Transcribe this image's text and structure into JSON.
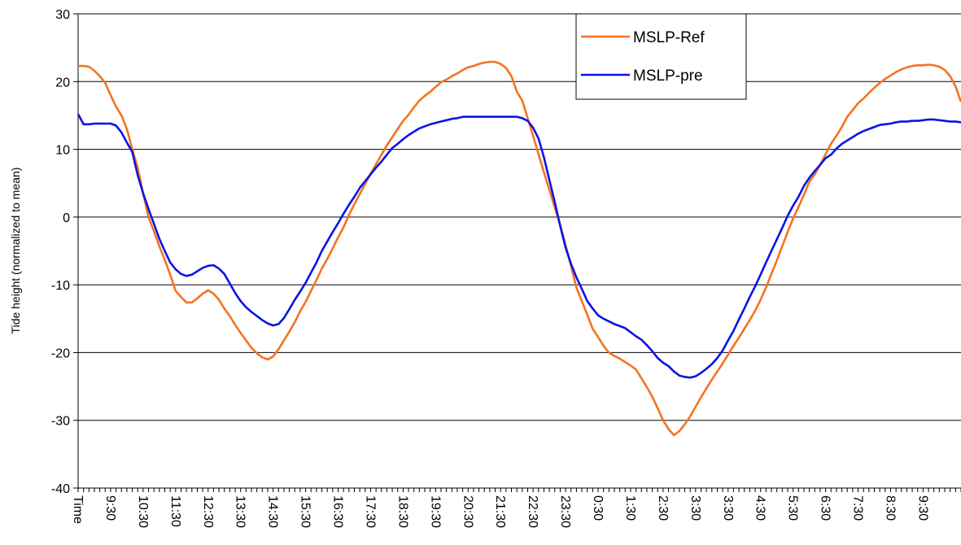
{
  "chart_data": {
    "type": "line",
    "y_label": "Tide height (normalized to mean)",
    "categories": [
      "Time",
      null,
      null,
      null,
      null,
      null,
      "9:30",
      null,
      null,
      null,
      null,
      null,
      "10:30",
      null,
      null,
      null,
      null,
      null,
      "11:30",
      null,
      null,
      null,
      null,
      null,
      "12:30",
      null,
      null,
      null,
      null,
      null,
      "13:30",
      null,
      null,
      null,
      null,
      null,
      "14:30",
      null,
      null,
      null,
      null,
      null,
      "15:30",
      null,
      null,
      null,
      null,
      null,
      "16:30",
      null,
      null,
      null,
      null,
      null,
      "17:30",
      null,
      null,
      null,
      null,
      null,
      "18:30",
      null,
      null,
      null,
      null,
      null,
      "19:30",
      null,
      null,
      null,
      null,
      null,
      "20:30",
      null,
      null,
      null,
      null,
      null,
      "21:30",
      null,
      null,
      null,
      null,
      null,
      "22:30",
      null,
      null,
      null,
      null,
      null,
      "23:30",
      null,
      null,
      null,
      null,
      null,
      "0:30",
      null,
      null,
      null,
      null,
      null,
      "1:30",
      null,
      null,
      null,
      null,
      null,
      "2:30",
      null,
      null,
      null,
      null,
      null,
      "3:30",
      null,
      null,
      null,
      null,
      null,
      "3:30",
      null,
      null,
      null,
      null,
      null,
      "4:30",
      null,
      null,
      null,
      null,
      null,
      "5:30",
      null,
      null,
      null,
      null,
      null,
      "6:30",
      null,
      null,
      null,
      null,
      null,
      "7:30",
      null,
      null,
      null,
      null,
      null,
      "8:30",
      null,
      null,
      null,
      null,
      null,
      "9:30",
      null,
      null,
      null,
      null,
      null,
      null,
      null
    ],
    "series": [
      {
        "name": "MSLP-Ref",
        "color": "#f47321",
        "values": [
          22.3,
          22.3,
          22.2,
          21.6,
          20.8,
          19.8,
          18,
          16.3,
          15,
          13,
          10,
          7.3,
          3.5,
          0,
          -2.1,
          -4.3,
          -6.3,
          -8.5,
          -10.9,
          -11.8,
          -12.6,
          -12.6,
          -12,
          -11.3,
          -10.8,
          -11.3,
          -12.2,
          -13.5,
          -14.6,
          -15.9,
          -17.1,
          -18.2,
          -19.3,
          -20.1,
          -20.7,
          -21,
          -20.6,
          -19.5,
          -18.2,
          -16.9,
          -15.5,
          -13.9,
          -12.5,
          -10.9,
          -9.3,
          -7.6,
          -6.2,
          -4.6,
          -3,
          -1.5,
          0.3,
          1.9,
          3.4,
          4.9,
          6.4,
          7.8,
          9.2,
          10.6,
          11.8,
          13,
          14.2,
          15.1,
          16.2,
          17.2,
          17.9,
          18.5,
          19.2,
          19.9,
          20.3,
          20.8,
          21.2,
          21.7,
          22.1,
          22.3,
          22.6,
          22.8,
          22.9,
          22.9,
          22.6,
          22,
          20.8,
          18.5,
          17.2,
          14.6,
          12,
          9.3,
          6.6,
          4,
          1.4,
          -1.1,
          -4.2,
          -7.2,
          -10.4,
          -12.4,
          -14.4,
          -16.5,
          -17.7,
          -19,
          -20,
          -20.5,
          -20.9,
          -21.4,
          -21.9,
          -22.5,
          -23.8,
          -25.1,
          -26.5,
          -28.2,
          -30,
          -31.3,
          -32.2,
          -31.6,
          -30.6,
          -29.4,
          -28,
          -26.6,
          -25.3,
          -24,
          -22.8,
          -21.6,
          -20.3,
          -19,
          -17.8,
          -16.5,
          -15.2,
          -13.8,
          -12.2,
          -10.4,
          -8.4,
          -6.4,
          -4.3,
          -2.2,
          -0.2,
          1.5,
          3.3,
          5.2,
          6.3,
          7.7,
          9.3,
          10.8,
          12,
          13.3,
          14.8,
          15.8,
          16.8,
          17.5,
          18.3,
          19.1,
          19.8,
          20.4,
          20.9,
          21.4,
          21.8,
          22.1,
          22.3,
          22.4,
          22.4,
          22.5,
          22.4,
          22.2,
          21.7,
          20.8,
          19.3,
          17
        ]
      },
      {
        "name": "MSLP-pre",
        "color": "#0a14e6",
        "values": [
          15.2,
          13.7,
          13.7,
          13.8,
          13.8,
          13.8,
          13.8,
          13.5,
          12.5,
          11,
          9.6,
          6.2,
          3.5,
          1.2,
          -1,
          -3.2,
          -5,
          -6.7,
          -7.7,
          -8.4,
          -8.7,
          -8.5,
          -8,
          -7.5,
          -7.2,
          -7.1,
          -7.6,
          -8.4,
          -9.8,
          -11.2,
          -12.4,
          -13.3,
          -14,
          -14.6,
          -15.2,
          -15.7,
          -16,
          -15.8,
          -14.9,
          -13.6,
          -12.2,
          -11,
          -9.7,
          -8.2,
          -6.7,
          -5,
          -3.6,
          -2.2,
          -0.9,
          0.5,
          1.8,
          3,
          4.3,
          5.3,
          6.3,
          7.3,
          8.2,
          9.2,
          10.2,
          10.8,
          11.5,
          12.1,
          12.6,
          13.1,
          13.4,
          13.7,
          13.9,
          14.1,
          14.3,
          14.5,
          14.6,
          14.8,
          14.8,
          14.8,
          14.8,
          14.8,
          14.8,
          14.8,
          14.8,
          14.8,
          14.8,
          14.8,
          14.6,
          14.2,
          13.2,
          11.6,
          8.8,
          5.5,
          2.2,
          -1.3,
          -4.5,
          -6.9,
          -8.9,
          -10.6,
          -12.4,
          -13.5,
          -14.5,
          -15,
          -15.4,
          -15.8,
          -16.1,
          -16.4,
          -17,
          -17.6,
          -18.1,
          -18.9,
          -19.8,
          -20.8,
          -21.5,
          -22,
          -22.8,
          -23.4,
          -23.6,
          -23.7,
          -23.5,
          -23,
          -22.4,
          -21.7,
          -20.8,
          -19.7,
          -18.2,
          -16.8,
          -15.1,
          -13.5,
          -11.8,
          -10.2,
          -8.5,
          -6.7,
          -5,
          -3.3,
          -1.6,
          0.2,
          1.7,
          3,
          4.6,
          5.8,
          6.8,
          7.7,
          8.7,
          9.2,
          10.1,
          10.8,
          11.3,
          11.8,
          12.3,
          12.7,
          13,
          13.3,
          13.6,
          13.7,
          13.8,
          14,
          14.1,
          14.1,
          14.2,
          14.2,
          14.3,
          14.4,
          14.4,
          14.3,
          14.2,
          14.1,
          14.1,
          14
        ]
      }
    ],
    "ylim": [
      -40,
      30
    ],
    "yticks": [
      -40,
      -30,
      -20,
      -10,
      0,
      10,
      20,
      30
    ],
    "grid": true,
    "legend": "top-right"
  }
}
